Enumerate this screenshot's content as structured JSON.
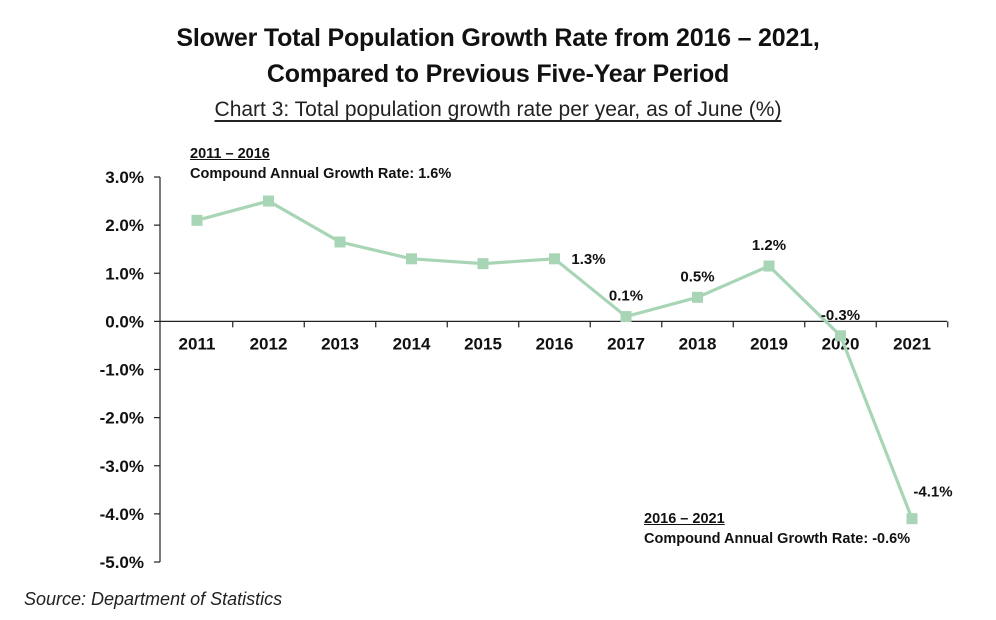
{
  "chart_data": {
    "type": "line",
    "title": "Slower Total Population Growth Rate from 2016 – 2021,",
    "title_line2": "Compared to Previous Five-Year Period",
    "subtitle": "Chart 3: Total population growth rate per year, as of June (%)",
    "categories": [
      "2011",
      "2012",
      "2013",
      "2014",
      "2015",
      "2016",
      "2017",
      "2018",
      "2019",
      "2020",
      "2021"
    ],
    "values": [
      2.1,
      2.5,
      1.65,
      1.3,
      1.2,
      1.3,
      0.1,
      0.5,
      1.15,
      -0.3,
      -4.1
    ],
    "data_labels": [
      "",
      "",
      "",
      "",
      "",
      "1.3%",
      "0.1%",
      "0.5%",
      "1.2%",
      "-0.3%",
      "-4.1%"
    ],
    "ylim": [
      -5.0,
      3.0
    ],
    "yticks": [
      "3.0%",
      "2.0%",
      "1.0%",
      "0.0%",
      "-1.0%",
      "-2.0%",
      "-3.0%",
      "-4.0%",
      "-5.0%"
    ],
    "line_color": "#a8d5b5",
    "marker_color": "#a8d5b5",
    "grid": false,
    "annotations": [
      {
        "period": "2011 – 2016",
        "text": "Compound Annual Growth Rate: 1.6%"
      },
      {
        "period": "2016 – 2021",
        "text": "Compound Annual Growth Rate: -0.6%"
      }
    ],
    "source": "Source: Department of Statistics"
  }
}
